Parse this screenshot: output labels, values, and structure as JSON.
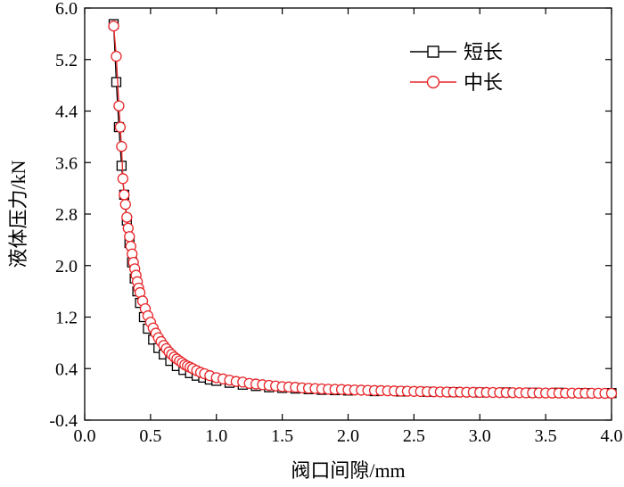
{
  "chart_data": {
    "type": "scatter",
    "xlabel": "阀口间隙/mm",
    "ylabel": "液体压力/kN",
    "xlim": [
      0.0,
      4.0
    ],
    "ylim": [
      -0.4,
      6.0
    ],
    "xticks": [
      0.0,
      0.5,
      1.0,
      1.5,
      2.0,
      2.5,
      3.0,
      3.5,
      4.0
    ],
    "xtick_labels": [
      "0.0",
      "0.5",
      "1.0",
      "1.5",
      "2.0",
      "2.5",
      "3.0",
      "3.5",
      "4.0"
    ],
    "yticks": [
      -0.4,
      0.4,
      1.2,
      2.0,
      2.8,
      3.6,
      4.4,
      5.2,
      6.0
    ],
    "ytick_labels": [
      "-0.4",
      "0.4",
      "1.2",
      "2.0",
      "2.8",
      "3.6",
      "4.4",
      "5.2",
      "6.0"
    ],
    "grid": false,
    "legend_position": "top-right",
    "series": [
      {
        "name": "短长",
        "marker": "square",
        "color": "#000000",
        "x": [
          0.22,
          0.24,
          0.26,
          0.28,
          0.3,
          0.32,
          0.34,
          0.36,
          0.38,
          0.4,
          0.42,
          0.45,
          0.48,
          0.52,
          0.56,
          0.6,
          0.65,
          0.7,
          0.75,
          0.8,
          0.85,
          0.9,
          0.95,
          1.0,
          1.1,
          1.2,
          1.3,
          1.4,
          1.5,
          1.6,
          1.7,
          1.8,
          1.9,
          2.0,
          2.2,
          2.4,
          2.6,
          2.8,
          3.0,
          3.2,
          3.4,
          3.6,
          3.8,
          4.0
        ],
        "y": [
          5.75,
          4.85,
          4.15,
          3.55,
          3.1,
          2.7,
          2.35,
          2.05,
          1.8,
          1.6,
          1.42,
          1.2,
          1.02,
          0.85,
          0.72,
          0.62,
          0.52,
          0.44,
          0.38,
          0.33,
          0.29,
          0.26,
          0.23,
          0.21,
          0.18,
          0.15,
          0.13,
          0.11,
          0.1,
          0.09,
          0.08,
          0.07,
          0.065,
          0.06,
          0.05,
          0.045,
          0.04,
          0.035,
          0.03,
          0.03,
          0.025,
          0.025,
          0.02,
          0.02
        ]
      },
      {
        "name": "中长",
        "marker": "circle",
        "color": "#e8262a",
        "x": [
          0.22,
          0.24,
          0.26,
          0.27,
          0.28,
          0.29,
          0.3,
          0.31,
          0.32,
          0.33,
          0.34,
          0.35,
          0.36,
          0.37,
          0.38,
          0.39,
          0.4,
          0.41,
          0.42,
          0.44,
          0.46,
          0.48,
          0.5,
          0.52,
          0.54,
          0.56,
          0.58,
          0.6,
          0.62,
          0.64,
          0.66,
          0.68,
          0.7,
          0.72,
          0.74,
          0.76,
          0.78,
          0.8,
          0.82,
          0.85,
          0.88,
          0.91,
          0.95,
          1.0,
          1.05,
          1.1,
          1.15,
          1.2,
          1.25,
          1.3,
          1.35,
          1.4,
          1.45,
          1.5,
          1.55,
          1.6,
          1.65,
          1.7,
          1.75,
          1.8,
          1.85,
          1.9,
          1.95,
          2.0,
          2.05,
          2.1,
          2.15,
          2.2,
          2.25,
          2.3,
          2.35,
          2.4,
          2.45,
          2.5,
          2.55,
          2.6,
          2.65,
          2.7,
          2.75,
          2.8,
          2.85,
          2.9,
          2.95,
          3.0,
          3.05,
          3.1,
          3.15,
          3.2,
          3.25,
          3.3,
          3.35,
          3.4,
          3.45,
          3.5,
          3.55,
          3.6,
          3.65,
          3.7,
          3.75,
          3.8,
          3.85,
          3.9,
          3.95,
          4.0
        ],
        "y": [
          5.72,
          5.25,
          4.48,
          4.15,
          3.85,
          3.35,
          3.1,
          2.95,
          2.75,
          2.58,
          2.45,
          2.3,
          2.18,
          2.05,
          1.95,
          1.85,
          1.75,
          1.65,
          1.58,
          1.45,
          1.33,
          1.22,
          1.12,
          1.03,
          0.95,
          0.88,
          0.82,
          0.76,
          0.71,
          0.66,
          0.62,
          0.58,
          0.55,
          0.52,
          0.49,
          0.46,
          0.44,
          0.42,
          0.4,
          0.37,
          0.34,
          0.32,
          0.29,
          0.26,
          0.24,
          0.22,
          0.2,
          0.19,
          0.17,
          0.16,
          0.15,
          0.14,
          0.13,
          0.12,
          0.115,
          0.11,
          0.1,
          0.095,
          0.09,
          0.085,
          0.08,
          0.078,
          0.075,
          0.07,
          0.068,
          0.065,
          0.062,
          0.06,
          0.058,
          0.055,
          0.053,
          0.05,
          0.048,
          0.046,
          0.044,
          0.042,
          0.04,
          0.038,
          0.036,
          0.035,
          0.034,
          0.033,
          0.032,
          0.031,
          0.03,
          0.029,
          0.028,
          0.027,
          0.026,
          0.025,
          0.024,
          0.023,
          0.022,
          0.021,
          0.02,
          0.02,
          0.019,
          0.019,
          0.018,
          0.018,
          0.017,
          0.017,
          0.016,
          0.016
        ]
      }
    ]
  }
}
